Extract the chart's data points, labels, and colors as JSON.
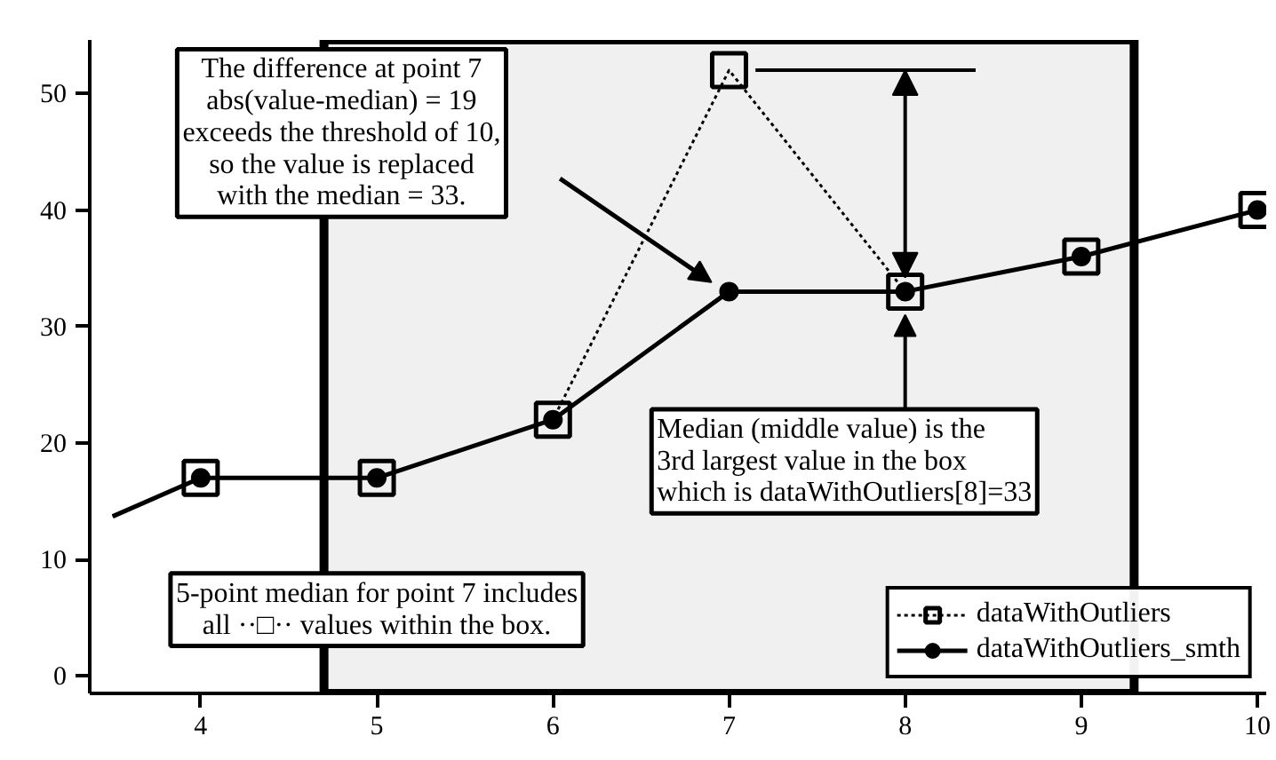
{
  "chart_data": {
    "type": "line",
    "x": [
      3.5,
      4,
      5,
      6,
      7,
      8,
      9,
      10
    ],
    "series": [
      {
        "name": "dataWithOutliers",
        "color": "#000000",
        "values": [
          13.7,
          17,
          17,
          22,
          52,
          33,
          36,
          40
        ],
        "marker": "square",
        "line_style": "dotted"
      },
      {
        "name": "dataWithOutliers_smth",
        "color": "#000000",
        "values": [
          13.7,
          17,
          17,
          22,
          33,
          33,
          36,
          40
        ],
        "marker": "circle",
        "line_style": "solid"
      }
    ],
    "xlim": [
      3.37,
      10.05
    ],
    "xticks": [
      4,
      5,
      6,
      7,
      8,
      9,
      10
    ],
    "ylim": [
      -1.5,
      54.6
    ],
    "yticks": [
      0,
      10,
      20,
      30,
      40,
      50
    ],
    "bands": [
      {
        "axis": "x",
        "from": 4.7,
        "to": 9.3,
        "color": "#f0f0f0"
      }
    ],
    "ref_lines": [
      {
        "axis": "y",
        "value": 52,
        "color": "#000000"
      }
    ],
    "annotations": [
      "The difference at point 7\nabs(value-median) = 19\nexceeds the threshold of 10,\nso the value is replaced\nwith the median = 33.",
      {
        "text": "Median (middle value) is the\n3rd largest value in the box\nwhich is dataWithOutliers[8]=33",
        "x": 8,
        "y": 31
      },
      "5-point median for point 7 includes\nall ··□·· values within the box."
    ],
    "grid": false,
    "legend": "bottom right"
  }
}
